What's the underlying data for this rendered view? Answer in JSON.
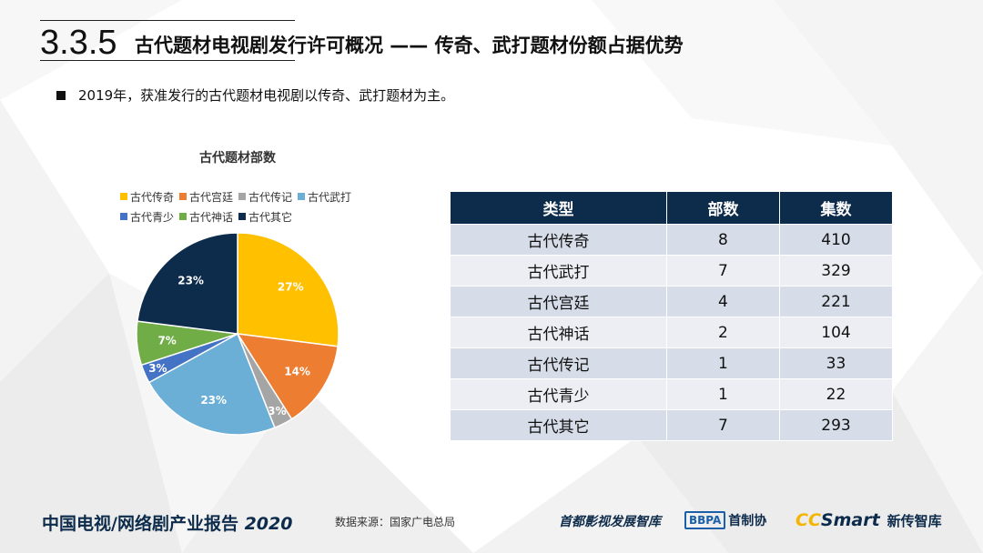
{
  "header": {
    "section_number": "3.3.5",
    "title": "古代题材电视剧发行许可概况 —— 传奇、武打题材份额占据优势"
  },
  "bullet": "2019年，获准发行的古代题材电视剧以传奇、武打题材为主。",
  "chart_data": {
    "type": "pie",
    "title": "古代题材部数",
    "legend_position": "top",
    "slices": [
      {
        "name": "古代传奇",
        "value": 27,
        "label": "27%",
        "color": "#ffc000"
      },
      {
        "name": "古代宫廷",
        "value": 14,
        "label": "14%",
        "color": "#ed7d31"
      },
      {
        "name": "古代传记",
        "value": 3,
        "label": "3%",
        "color": "#a5a5a5"
      },
      {
        "name": "古代武打",
        "value": 23,
        "label": "23%",
        "color": "#6baed6"
      },
      {
        "name": "古代青少",
        "value": 3,
        "label": "3%",
        "color": "#4472c4"
      },
      {
        "name": "古代神话",
        "value": 7,
        "label": "7%",
        "color": "#70ad47"
      },
      {
        "name": "古代其它",
        "value": 23,
        "label": "23%",
        "color": "#0d2b4a"
      }
    ]
  },
  "table": {
    "headers": [
      "类型",
      "部数",
      "集数"
    ],
    "rows": [
      [
        "古代传奇",
        "8",
        "410"
      ],
      [
        "古代武打",
        "7",
        "329"
      ],
      [
        "古代宫廷",
        "4",
        "221"
      ],
      [
        "古代神话",
        "2",
        "104"
      ],
      [
        "古代传记",
        "1",
        "33"
      ],
      [
        "古代青少",
        "1",
        "22"
      ],
      [
        "古代其它",
        "7",
        "293"
      ]
    ]
  },
  "footer": {
    "report_title": "中国电视/网络剧产业报告",
    "report_year": "2020",
    "source": "数据来源：国家广电总局",
    "logo1": "首都影视发展智库",
    "logo2_badge": "BBPA",
    "logo2_text": "首制协",
    "logo3_cc": "CC",
    "logo3_smart": "Smart",
    "logo3_text": "新传智库"
  }
}
